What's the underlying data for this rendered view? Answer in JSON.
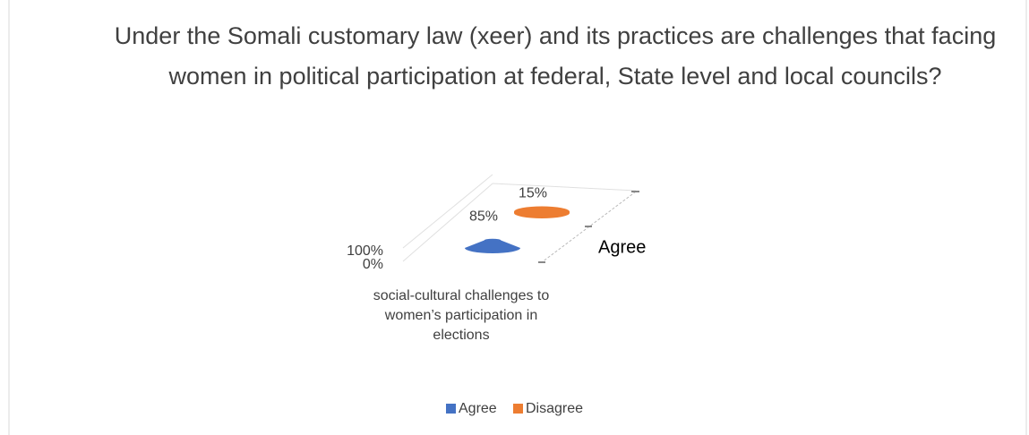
{
  "chart_data": {
    "type": "bar3d",
    "title": "Under the Somali customary law (xeer) and its practices are challenges that facing women in political participation at federal, State level and local councils?",
    "categories": [
      "social-cultural challenges to women’s participation in elections"
    ],
    "series": [
      {
        "name": "Agree",
        "color": "#4472c4",
        "values": [
          85
        ],
        "value_labels": [
          "85%"
        ]
      },
      {
        "name": "Disagree",
        "color": "#ed7d31",
        "values": [
          15
        ],
        "value_labels": [
          "15%"
        ]
      }
    ],
    "ylim": [
      0,
      100
    ],
    "yticks": [
      {
        "value": 0,
        "label": "0%"
      },
      {
        "value": 100,
        "label": "100%"
      }
    ],
    "legend": "bottom"
  }
}
